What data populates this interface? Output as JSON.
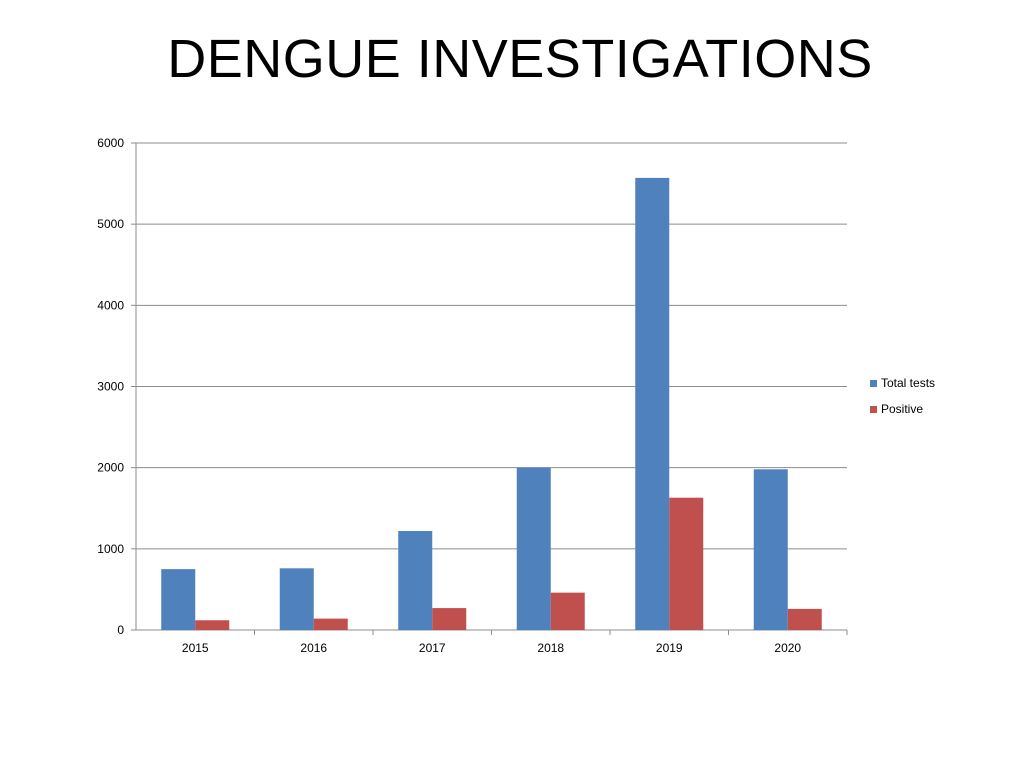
{
  "slide": {
    "title": "DENGUE INVESTIGATIONS"
  },
  "chart_data": {
    "type": "bar",
    "categories": [
      "2015",
      "2016",
      "2017",
      "2018",
      "2019",
      "2020"
    ],
    "series": [
      {
        "name": "Total tests",
        "values": [
          750,
          760,
          1220,
          2000,
          5570,
          1980
        ],
        "color": "#4f81bd"
      },
      {
        "name": "Positive",
        "values": [
          120,
          140,
          270,
          460,
          1630,
          260
        ],
        "color": "#c0504d"
      }
    ],
    "ylim": [
      0,
      6000
    ],
    "yticks": [
      0,
      1000,
      2000,
      3000,
      4000,
      5000,
      6000
    ],
    "grid": true,
    "legend": "right"
  }
}
